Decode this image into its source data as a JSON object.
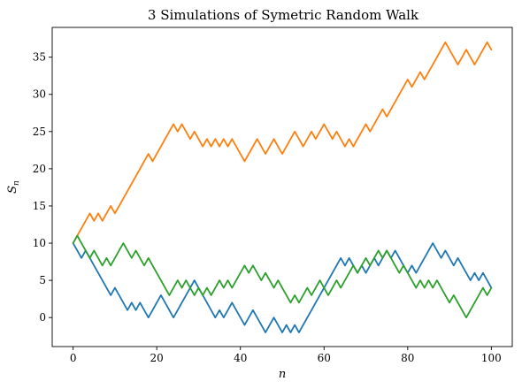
{
  "chart_data": {
    "type": "line",
    "title": "3 Simulations of Symetric Random Walk",
    "xlabel": "n",
    "ylabel": "S",
    "ylabel_subscript": "n",
    "xlim": [
      -5,
      105
    ],
    "ylim": [
      -3.9,
      39.0
    ],
    "x_ticks": [
      0,
      20,
      40,
      60,
      80,
      100
    ],
    "y_ticks": [
      0,
      5,
      10,
      15,
      20,
      25,
      30,
      35
    ],
    "grid": false,
    "x": [
      0,
      1,
      2,
      3,
      4,
      5,
      6,
      7,
      8,
      9,
      10,
      11,
      12,
      13,
      14,
      15,
      16,
      17,
      18,
      19,
      20,
      21,
      22,
      23,
      24,
      25,
      26,
      27,
      28,
      29,
      30,
      31,
      32,
      33,
      34,
      35,
      36,
      37,
      38,
      39,
      40,
      41,
      42,
      43,
      44,
      45,
      46,
      47,
      48,
      49,
      50,
      51,
      52,
      53,
      54,
      55,
      56,
      57,
      58,
      59,
      60,
      61,
      62,
      63,
      64,
      65,
      66,
      67,
      68,
      69,
      70,
      71,
      72,
      73,
      74,
      75,
      76,
      77,
      78,
      79,
      80,
      81,
      82,
      83,
      84,
      85,
      86,
      87,
      88,
      89,
      90,
      91,
      92,
      93,
      94,
      95,
      96,
      97,
      98,
      99,
      100
    ],
    "series": [
      {
        "color": "#1f77b4",
        "values": [
          10,
          9,
          8,
          9,
          8,
          7,
          6,
          5,
          4,
          3,
          4,
          3,
          2,
          1,
          2,
          1,
          2,
          1,
          0,
          1,
          2,
          3,
          2,
          1,
          0,
          1,
          2,
          3,
          4,
          5,
          4,
          3,
          2,
          1,
          0,
          1,
          0,
          1,
          2,
          1,
          0,
          -1,
          0,
          1,
          0,
          -1,
          -2,
          -1,
          0,
          -1,
          -2,
          -1,
          -2,
          -1,
          -2,
          -1,
          0,
          1,
          2,
          3,
          4,
          5,
          6,
          7,
          8,
          7,
          8,
          7,
          6,
          7,
          6,
          7,
          8,
          7,
          8,
          9,
          8,
          9,
          8,
          7,
          6,
          7,
          6,
          7,
          8,
          9,
          10,
          9,
          8,
          9,
          8,
          7,
          8,
          7,
          6,
          5,
          6,
          5,
          6,
          5,
          4
        ]
      },
      {
        "color": "#ff7f0e",
        "values": [
          10,
          11,
          12,
          13,
          14,
          13,
          14,
          13,
          14,
          15,
          14,
          15,
          16,
          17,
          18,
          19,
          20,
          21,
          22,
          21,
          22,
          23,
          24,
          25,
          26,
          25,
          26,
          25,
          24,
          25,
          24,
          23,
          24,
          23,
          24,
          23,
          24,
          23,
          24,
          23,
          22,
          21,
          22,
          23,
          24,
          23,
          22,
          23,
          24,
          23,
          22,
          23,
          24,
          25,
          24,
          23,
          24,
          25,
          24,
          25,
          26,
          25,
          24,
          25,
          24,
          23,
          24,
          23,
          24,
          25,
          26,
          25,
          26,
          27,
          28,
          27,
          28,
          29,
          30,
          31,
          32,
          31,
          32,
          33,
          32,
          33,
          34,
          35,
          36,
          37,
          36,
          35,
          34,
          35,
          36,
          35,
          34,
          35,
          36,
          37,
          36
        ]
      },
      {
        "color": "#2ca02c",
        "values": [
          10,
          11,
          10,
          9,
          8,
          9,
          8,
          7,
          8,
          7,
          8,
          9,
          10,
          9,
          8,
          9,
          8,
          7,
          8,
          7,
          6,
          5,
          4,
          3,
          4,
          5,
          4,
          5,
          4,
          3,
          4,
          3,
          4,
          3,
          4,
          5,
          4,
          5,
          4,
          5,
          6,
          7,
          6,
          7,
          6,
          5,
          6,
          5,
          4,
          5,
          4,
          3,
          2,
          3,
          2,
          3,
          4,
          3,
          4,
          5,
          4,
          3,
          4,
          5,
          4,
          5,
          6,
          7,
          6,
          7,
          8,
          7,
          8,
          9,
          8,
          9,
          8,
          7,
          6,
          7,
          6,
          5,
          4,
          5,
          4,
          5,
          4,
          5,
          4,
          3,
          2,
          3,
          2,
          1,
          0,
          1,
          2,
          3,
          4,
          3,
          4
        ]
      }
    ]
  }
}
